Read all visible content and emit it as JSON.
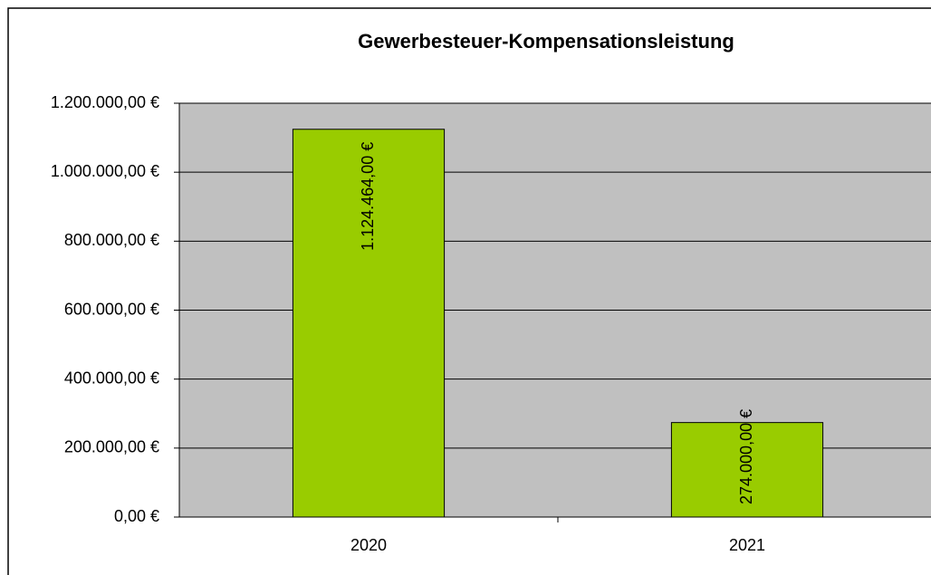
{
  "chart_data": {
    "type": "bar",
    "title": "Gewerbesteuer-Kompensationsleistung",
    "categories": [
      "2020",
      "2021"
    ],
    "values": [
      1124464,
      274000
    ],
    "value_labels": [
      "1.124.464,00 €",
      "274.000,00 €"
    ],
    "color": "#99cc00",
    "ylim": [
      0,
      1200000
    ],
    "yticks": [
      {
        "value": 0,
        "label": "0,00 €"
      },
      {
        "value": 200000,
        "label": "200.000,00 €"
      },
      {
        "value": 400000,
        "label": "400.000,00 €"
      },
      {
        "value": 600000,
        "label": "600.000,00 €"
      },
      {
        "value": 800000,
        "label": "800.000,00 €"
      },
      {
        "value": 1000000,
        "label": "1.000.000,00 €"
      },
      {
        "value": 1200000,
        "label": "1.200.000,00 €"
      }
    ],
    "grid": true
  }
}
